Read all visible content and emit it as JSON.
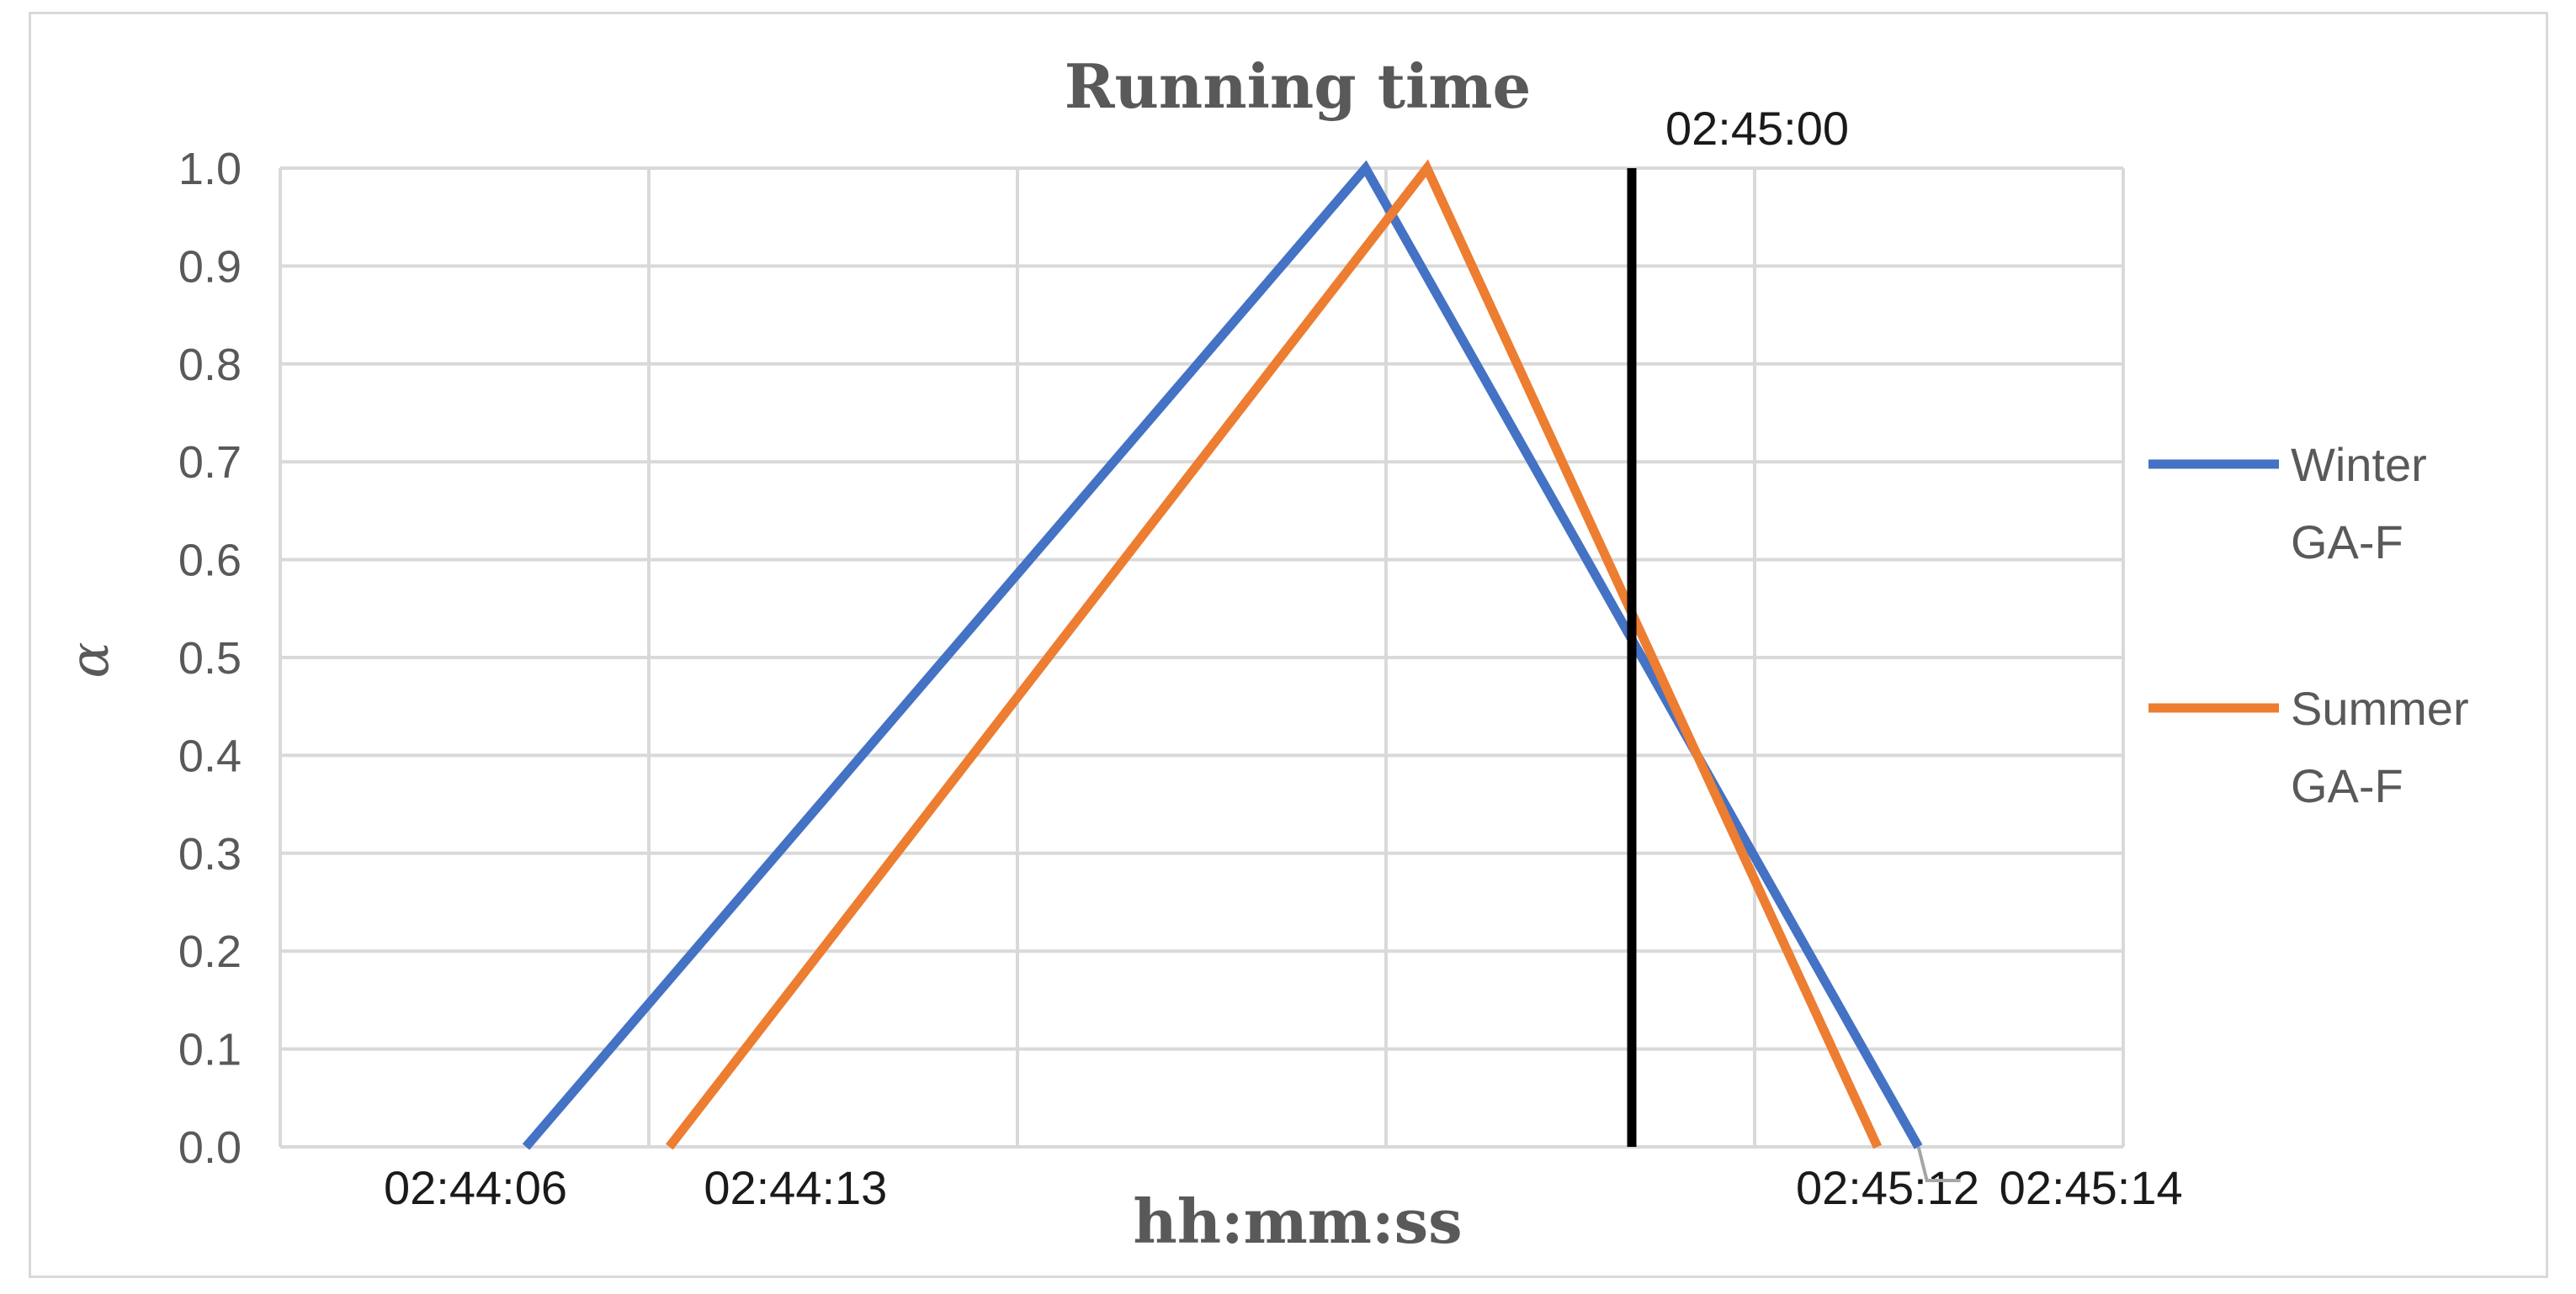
{
  "chart_data": {
    "type": "line",
    "title": "Running time",
    "xlabel": "hh:mm:ss",
    "ylabel": "α",
    "ylim": [
      0,
      1
    ],
    "yticks": [
      "0.0",
      "0.1",
      "0.2",
      "0.3",
      "0.4",
      "0.5",
      "0.6",
      "0.7",
      "0.8",
      "0.9",
      "1.0"
    ],
    "xlim": [
      "02:43:54",
      "02:45:24"
    ],
    "grid": true,
    "legend": "right",
    "series": [
      {
        "name": "Winter\nGA-F",
        "color": "#4472C4",
        "points": [
          {
            "x": "02:44:06",
            "y": 0.0
          },
          {
            "x": "02:44:47",
            "y": 1.0
          },
          {
            "x": "02:45:14",
            "y": 0.0
          }
        ]
      },
      {
        "name": "Summer\nGA-F",
        "color": "#ED7D31",
        "points": [
          {
            "x": "02:44:13",
            "y": 0.0
          },
          {
            "x": "02:44:50",
            "y": 1.0
          },
          {
            "x": "02:45:12",
            "y": 0.0
          }
        ]
      }
    ],
    "reference_line": {
      "x": "02:45:00",
      "label": "02:45:00",
      "color": "#000000"
    },
    "annotations": [
      "02:44:06",
      "02:44:13",
      "02:45:12",
      "02:45:14"
    ]
  }
}
